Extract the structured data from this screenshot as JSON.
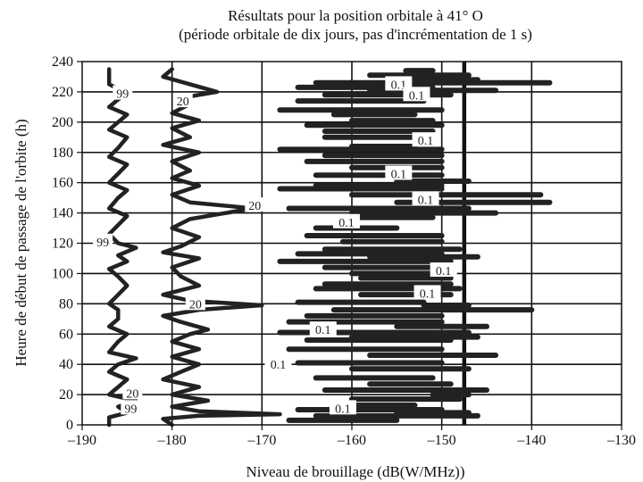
{
  "chart_data": {
    "type": "line",
    "title": "Résultats pour la position orbitale à 41° O",
    "subtitle": "(période orbitale de dix jours, pas d'incrémentation de 1 s)",
    "xlabel": "Niveau de brouillage (dB(W/MHz))",
    "ylabel": "Heure de début de passage de l'orbite (h)",
    "xlim": [
      -190,
      -130
    ],
    "ylim": [
      0,
      240
    ],
    "xticks": [
      -190,
      -180,
      -170,
      -160,
      -150,
      -140,
      -130
    ],
    "yticks": [
      0,
      20,
      40,
      60,
      80,
      100,
      120,
      140,
      160,
      180,
      200,
      220,
      240
    ],
    "xtick_labels": [
      "–190",
      "–180",
      "–170",
      "–160",
      "–150",
      "–140",
      "–130"
    ],
    "ytick_labels": [
      "0",
      "20",
      "40",
      "60",
      "80",
      "100",
      "120",
      "140",
      "160",
      "180",
      "200",
      "220",
      "240"
    ],
    "grid": true,
    "threshold": {
      "x": -147.5
    },
    "series": [
      {
        "label": "99",
        "points": [
          [
            -187,
            0
          ],
          [
            -187,
            5
          ],
          [
            -185,
            8
          ],
          [
            -186,
            12
          ],
          [
            -184,
            16
          ],
          [
            -187,
            20
          ],
          [
            -186,
            25
          ],
          [
            -185,
            30
          ],
          [
            -187,
            35
          ],
          [
            -186,
            40
          ],
          [
            -184,
            44
          ],
          [
            -187,
            48
          ],
          [
            -186,
            55
          ],
          [
            -185,
            60
          ],
          [
            -187,
            65
          ],
          [
            -186,
            70
          ],
          [
            -186,
            76
          ],
          [
            -187,
            80
          ],
          [
            -186,
            86
          ],
          [
            -185,
            92
          ],
          [
            -186,
            98
          ],
          [
            -187,
            103
          ],
          [
            -185,
            108
          ],
          [
            -186,
            112
          ],
          [
            -184,
            117
          ],
          [
            -186,
            120
          ],
          [
            -187,
            126
          ],
          [
            -186,
            132
          ],
          [
            -185,
            138
          ],
          [
            -187,
            143
          ],
          [
            -186,
            150
          ],
          [
            -185,
            155
          ],
          [
            -187,
            160
          ],
          [
            -186,
            166
          ],
          [
            -185,
            172
          ],
          [
            -187,
            177
          ],
          [
            -186,
            183
          ],
          [
            -185,
            190
          ],
          [
            -187,
            195
          ],
          [
            -186,
            200
          ],
          [
            -185,
            205
          ],
          [
            -187,
            210
          ],
          [
            -186,
            215
          ],
          [
            -185,
            219
          ],
          [
            -187,
            225
          ],
          [
            -187,
            235
          ]
        ]
      },
      {
        "label": "20",
        "points": [
          [
            -180,
            0
          ],
          [
            -181,
            4
          ],
          [
            -177,
            6
          ],
          [
            -168,
            7
          ],
          [
            -177,
            9
          ],
          [
            -180,
            12
          ],
          [
            -176,
            16
          ],
          [
            -180,
            20
          ],
          [
            -177,
            25
          ],
          [
            -181,
            30
          ],
          [
            -179,
            35
          ],
          [
            -177,
            40
          ],
          [
            -180,
            45
          ],
          [
            -177,
            50
          ],
          [
            -180,
            55
          ],
          [
            -178,
            60
          ],
          [
            -176,
            63
          ],
          [
            -179,
            68
          ],
          [
            -181,
            72
          ],
          [
            -177,
            76
          ],
          [
            -170,
            79
          ],
          [
            -178,
            82
          ],
          [
            -181,
            86
          ],
          [
            -177,
            92
          ],
          [
            -179,
            98
          ],
          [
            -180,
            104
          ],
          [
            -177,
            110
          ],
          [
            -181,
            114
          ],
          [
            -179,
            118
          ],
          [
            -177,
            124
          ],
          [
            -180,
            130
          ],
          [
            -178,
            136
          ],
          [
            -171,
            143
          ],
          [
            -178,
            147
          ],
          [
            -180,
            152
          ],
          [
            -177,
            158
          ],
          [
            -180,
            163
          ],
          [
            -178,
            168
          ],
          [
            -180,
            174
          ],
          [
            -177,
            180
          ],
          [
            -181,
            185
          ],
          [
            -178,
            190
          ],
          [
            -180,
            196
          ],
          [
            -177,
            201
          ],
          [
            -180,
            206
          ],
          [
            -178,
            212
          ],
          [
            -179,
            216
          ],
          [
            -175,
            220
          ],
          [
            -178,
            225
          ],
          [
            -181,
            230
          ],
          [
            -180,
            235
          ]
        ]
      },
      {
        "label": "0.1",
        "points": []
      }
    ],
    "contour_labels": [
      {
        "text": "99",
        "x": -185.5,
        "y": 219
      },
      {
        "text": "20",
        "x": -178.8,
        "y": 214
      },
      {
        "text": "0.1",
        "x": -154.8,
        "y": 225
      },
      {
        "text": "0.1",
        "x": -152.8,
        "y": 218
      },
      {
        "text": "0.1",
        "x": -151.8,
        "y": 188
      },
      {
        "text": "0.1",
        "x": -154.8,
        "y": 166
      },
      {
        "text": "0.1",
        "x": -151.8,
        "y": 149
      },
      {
        "text": "20",
        "x": -170.8,
        "y": 145
      },
      {
        "text": "0.1",
        "x": -160.6,
        "y": 134
      },
      {
        "text": "99",
        "x": -187.7,
        "y": 121
      },
      {
        "text": "0.1",
        "x": -149.8,
        "y": 102
      },
      {
        "text": "0.1",
        "x": -151.6,
        "y": 87
      },
      {
        "text": "20",
        "x": -177.4,
        "y": 80
      },
      {
        "text": "0.1",
        "x": -163.2,
        "y": 63
      },
      {
        "text": "0.1",
        "x": -168.2,
        "y": 40
      },
      {
        "text": "20",
        "x": -184.4,
        "y": 21
      },
      {
        "text": "99",
        "x": -184.6,
        "y": 11
      },
      {
        "text": "0.1",
        "x": -161.0,
        "y": 11
      }
    ],
    "streaks_01": [
      [
        -167,
        3,
        -155,
        3
      ],
      [
        -164,
        6,
        -146,
        6
      ],
      [
        -155,
        8,
        -147,
        8
      ],
      [
        -166,
        10,
        -150,
        10
      ],
      [
        -162,
        13,
        -153,
        13
      ],
      [
        -160,
        17,
        -148,
        17
      ],
      [
        -151,
        20,
        -147,
        20
      ],
      [
        -163,
        23,
        -145,
        23
      ],
      [
        -158,
        27,
        -149,
        27
      ],
      [
        -164,
        31,
        -151,
        31
      ],
      [
        -160,
        37,
        -147,
        37
      ],
      [
        -166,
        41,
        -150,
        41
      ],
      [
        -158,
        46,
        -144,
        46
      ],
      [
        -167,
        50,
        -150,
        50
      ],
      [
        -165,
        56,
        -149,
        56
      ],
      [
        -160,
        58,
        -146,
        58
      ],
      [
        -168,
        61,
        -147,
        61
      ],
      [
        -155,
        65,
        -145,
        65
      ],
      [
        -167,
        68,
        -150,
        68
      ],
      [
        -165,
        72,
        -150,
        72
      ],
      [
        -162,
        76,
        -140,
        76
      ],
      [
        -152,
        79,
        -147,
        79
      ],
      [
        -166,
        81,
        -152,
        81
      ],
      [
        -159,
        86,
        -149,
        86
      ],
      [
        -164,
        90,
        -148,
        90
      ],
      [
        -163,
        93,
        -149,
        93
      ],
      [
        -159,
        97,
        -149,
        97
      ],
      [
        -160,
        100,
        -149,
        100
      ],
      [
        -163,
        104,
        -150,
        104
      ],
      [
        -168,
        108,
        -149,
        108
      ],
      [
        -158,
        111,
        -146,
        111
      ],
      [
        -166,
        113,
        -150,
        113
      ],
      [
        -163,
        116,
        -148,
        116
      ],
      [
        -161,
        121,
        -150,
        121
      ],
      [
        -165,
        125,
        -150,
        125
      ],
      [
        -164,
        130,
        -155,
        130
      ],
      [
        -159,
        137,
        -151,
        137
      ],
      [
        -160,
        140,
        -144,
        140
      ],
      [
        -167,
        143,
        -147,
        143
      ],
      [
        -155,
        147,
        -138,
        147
      ],
      [
        -160,
        152,
        -139,
        152
      ],
      [
        -168,
        156,
        -150,
        156
      ],
      [
        -164,
        158,
        -150,
        158
      ],
      [
        -155,
        161,
        -147,
        161
      ],
      [
        -164,
        165,
        -150,
        165
      ],
      [
        -160,
        170,
        -150,
        170
      ],
      [
        -165,
        174,
        -150,
        174
      ],
      [
        -163,
        178,
        -150,
        178
      ],
      [
        -168,
        182,
        -150,
        182
      ],
      [
        -160,
        184,
        -153,
        184
      ],
      [
        -163,
        190,
        -152,
        190
      ],
      [
        -163,
        194,
        -151,
        194
      ],
      [
        -165,
        198,
        -150,
        198
      ],
      [
        -160,
        201,
        -151,
        201
      ],
      [
        -162,
        205,
        -153,
        205
      ],
      [
        -168,
        208,
        -150,
        208
      ],
      [
        -166,
        214,
        -152,
        214
      ],
      [
        -163,
        218,
        -149,
        218
      ],
      [
        -158,
        221,
        -144,
        221
      ],
      [
        -166,
        223,
        -151,
        223
      ],
      [
        -164,
        226,
        -138,
        226
      ],
      [
        -155,
        228,
        -146,
        228
      ],
      [
        -158,
        231,
        -147,
        231
      ],
      [
        -154,
        234,
        -151,
        234
      ]
    ]
  }
}
